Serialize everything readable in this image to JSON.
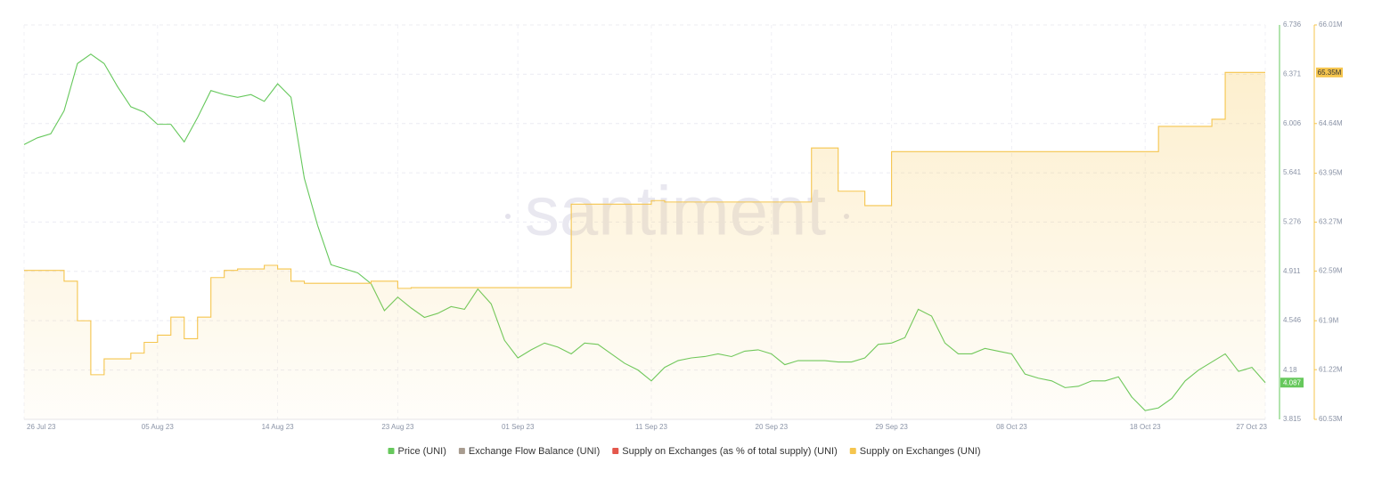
{
  "chart_data": {
    "type": "line",
    "watermark": "santiment",
    "x": [
      "2023-07-26",
      "2023-07-27",
      "2023-07-28",
      "2023-07-29",
      "2023-07-30",
      "2023-07-31",
      "2023-08-01",
      "2023-08-02",
      "2023-08-03",
      "2023-08-04",
      "2023-08-05",
      "2023-08-06",
      "2023-08-07",
      "2023-08-08",
      "2023-08-09",
      "2023-08-10",
      "2023-08-11",
      "2023-08-12",
      "2023-08-13",
      "2023-08-14",
      "2023-08-15",
      "2023-08-16",
      "2023-08-17",
      "2023-08-18",
      "2023-08-19",
      "2023-08-20",
      "2023-08-21",
      "2023-08-22",
      "2023-08-23",
      "2023-08-24",
      "2023-08-25",
      "2023-08-26",
      "2023-08-27",
      "2023-08-28",
      "2023-08-29",
      "2023-08-30",
      "2023-08-31",
      "2023-09-01",
      "2023-09-02",
      "2023-09-03",
      "2023-09-04",
      "2023-09-05",
      "2023-09-06",
      "2023-09-07",
      "2023-09-08",
      "2023-09-09",
      "2023-09-10",
      "2023-09-11",
      "2023-09-12",
      "2023-09-13",
      "2023-09-14",
      "2023-09-15",
      "2023-09-16",
      "2023-09-17",
      "2023-09-18",
      "2023-09-19",
      "2023-09-20",
      "2023-09-21",
      "2023-09-22",
      "2023-09-23",
      "2023-09-24",
      "2023-09-25",
      "2023-09-26",
      "2023-09-27",
      "2023-09-28",
      "2023-09-29",
      "2023-09-30",
      "2023-10-01",
      "2023-10-02",
      "2023-10-03",
      "2023-10-04",
      "2023-10-05",
      "2023-10-06",
      "2023-10-07",
      "2023-10-08",
      "2023-10-09",
      "2023-10-10",
      "2023-10-11",
      "2023-10-12",
      "2023-10-13",
      "2023-10-14",
      "2023-10-15",
      "2023-10-16",
      "2023-10-17",
      "2023-10-18",
      "2023-10-19",
      "2023-10-20",
      "2023-10-21",
      "2023-10-22",
      "2023-10-23",
      "2023-10-24",
      "2023-10-25",
      "2023-10-26",
      "2023-10-27"
    ],
    "series": [
      {
        "name": "Price (UNI)",
        "color": "#66c85c",
        "axis": "y",
        "last_label": "4.087",
        "values": [
          5.85,
          5.9,
          5.93,
          6.1,
          6.45,
          6.52,
          6.45,
          6.28,
          6.13,
          6.09,
          6.0,
          6.0,
          5.87,
          6.05,
          6.25,
          6.22,
          6.2,
          6.22,
          6.17,
          6.3,
          6.2,
          5.6,
          5.25,
          4.96,
          4.93,
          4.9,
          4.82,
          4.62,
          4.72,
          4.64,
          4.57,
          4.6,
          4.65,
          4.63,
          4.78,
          4.67,
          4.4,
          4.27,
          4.33,
          4.38,
          4.35,
          4.3,
          4.38,
          4.37,
          4.3,
          4.23,
          4.18,
          4.1,
          4.2,
          4.25,
          4.27,
          4.28,
          4.3,
          4.28,
          4.32,
          4.33,
          4.3,
          4.22,
          4.25,
          4.25,
          4.25,
          4.24,
          4.24,
          4.27,
          4.37,
          4.38,
          4.42,
          4.63,
          4.58,
          4.38,
          4.3,
          4.3,
          4.34,
          4.32,
          4.3,
          4.15,
          4.12,
          4.1,
          4.05,
          4.06,
          4.1,
          4.1,
          4.13,
          3.98,
          3.88,
          3.9,
          3.97,
          4.1,
          4.18,
          4.24,
          4.3,
          4.17,
          4.2,
          4.087
        ]
      },
      {
        "name": "Exchange Flow Balance (UNI)",
        "color": "#a89c90"
      },
      {
        "name": "Supply on Exchanges (as % of total supply) (UNI)",
        "color": "#e4574c"
      },
      {
        "name": "Supply on Exchanges (UNI)",
        "color": "#f5c54e",
        "axis": "y2",
        "last_label": "65.35M",
        "values": [
          62.6,
          62.6,
          62.6,
          62.45,
          61.9,
          61.15,
          61.37,
          61.37,
          61.45,
          61.6,
          61.7,
          61.95,
          61.65,
          61.95,
          62.5,
          62.6,
          62.62,
          62.62,
          62.67,
          62.62,
          62.45,
          62.42,
          62.42,
          62.42,
          62.42,
          62.42,
          62.45,
          62.45,
          62.35,
          62.36,
          62.36,
          62.36,
          62.36,
          62.36,
          62.36,
          62.36,
          62.36,
          62.36,
          62.36,
          62.36,
          62.36,
          63.52,
          63.52,
          63.52,
          63.52,
          63.52,
          63.52,
          63.57,
          63.55,
          63.55,
          63.55,
          63.55,
          63.55,
          63.55,
          63.55,
          63.55,
          63.55,
          63.55,
          63.55,
          64.3,
          64.3,
          63.7,
          63.7,
          63.5,
          63.5,
          64.25,
          64.25,
          64.25,
          64.25,
          64.25,
          64.25,
          64.25,
          64.25,
          64.25,
          64.25,
          64.25,
          64.25,
          64.25,
          64.25,
          64.25,
          64.25,
          64.25,
          64.25,
          64.25,
          64.25,
          64.6,
          64.6,
          64.6,
          64.6,
          64.7,
          65.35,
          65.35,
          65.35,
          65.35
        ]
      }
    ],
    "xlim": [
      "2023-07-26",
      "2023-10-27"
    ],
    "xticks": [
      {
        "value": "2023-07-26",
        "label": "26 Jul 23"
      },
      {
        "value": "2023-08-05",
        "label": "05 Aug 23"
      },
      {
        "value": "2023-08-14",
        "label": "14 Aug 23"
      },
      {
        "value": "2023-08-23",
        "label": "23 Aug 23"
      },
      {
        "value": "2023-09-01",
        "label": "01 Sep 23"
      },
      {
        "value": "2023-09-11",
        "label": "11 Sep 23"
      },
      {
        "value": "2023-09-20",
        "label": "20 Sep 23"
      },
      {
        "value": "2023-09-29",
        "label": "29 Sep 23"
      },
      {
        "value": "2023-10-08",
        "label": "08 Oct 23"
      },
      {
        "value": "2023-10-18",
        "label": "18 Oct 23"
      },
      {
        "value": "2023-10-27",
        "label": "27 Oct 23"
      }
    ],
    "ylim": [
      3.815,
      6.736
    ],
    "yticks": [
      3.815,
      4.18,
      4.546,
      4.911,
      5.276,
      5.641,
      6.006,
      6.371,
      6.736
    ],
    "y2lim": [
      60.53,
      66.01
    ],
    "y2ticks": [
      {
        "value": 60.53,
        "label": "60.53M"
      },
      {
        "value": 61.22,
        "label": "61.22M"
      },
      {
        "value": 61.9,
        "label": "61.9M"
      },
      {
        "value": 62.59,
        "label": "62.59M"
      },
      {
        "value": 63.27,
        "label": "63.27M"
      },
      {
        "value": 63.95,
        "label": "63.95M"
      },
      {
        "value": 64.64,
        "label": "64.64M"
      },
      {
        "value": 66.01,
        "label": "66.01M"
      }
    ],
    "grid": true
  }
}
